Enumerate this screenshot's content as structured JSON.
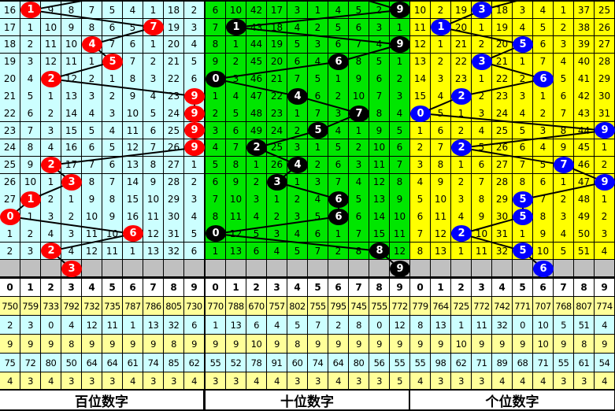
{
  "chart_data": {
    "type": "table",
    "digit_header": [
      "0",
      "1",
      "2",
      "3",
      "4",
      "5",
      "6",
      "7",
      "8",
      "9"
    ],
    "panels": [
      {
        "title": "百位数字",
        "bg_color": "#ccffff",
        "ball_color": "#ff0000",
        "draws": [
          1,
          7,
          4,
          5,
          2,
          9,
          9,
          9,
          9,
          2,
          3,
          1,
          0,
          6,
          2
        ],
        "next_draw": 3,
        "rows": [
          [
            16,
            1,
            9,
            8,
            7,
            5,
            4,
            1,
            18,
            2
          ],
          [
            17,
            1,
            10,
            9,
            8,
            6,
            5,
            7,
            19,
            3
          ],
          [
            18,
            2,
            11,
            10,
            4,
            7,
            6,
            1,
            20,
            4
          ],
          [
            19,
            3,
            12,
            11,
            1,
            5,
            7,
            2,
            21,
            5
          ],
          [
            20,
            4,
            2,
            12,
            2,
            1,
            8,
            3,
            22,
            6
          ],
          [
            21,
            5,
            1,
            13,
            3,
            2,
            9,
            4,
            23,
            9
          ],
          [
            22,
            6,
            2,
            14,
            4,
            3,
            10,
            5,
            24,
            9
          ],
          [
            23,
            7,
            3,
            15,
            5,
            4,
            11,
            6,
            25,
            9
          ],
          [
            24,
            8,
            4,
            16,
            6,
            5,
            12,
            7,
            26,
            9
          ],
          [
            25,
            9,
            2,
            17,
            7,
            6,
            13,
            8,
            27,
            1
          ],
          [
            26,
            10,
            1,
            3,
            8,
            7,
            14,
            9,
            28,
            2
          ],
          [
            27,
            1,
            2,
            1,
            9,
            8,
            15,
            10,
            29,
            3
          ],
          [
            0,
            1,
            3,
            2,
            10,
            9,
            16,
            11,
            30,
            4
          ],
          [
            1,
            2,
            4,
            3,
            11,
            10,
            6,
            12,
            31,
            5
          ],
          [
            2,
            3,
            2,
            4,
            12,
            11,
            1,
            13,
            32,
            6
          ]
        ],
        "stats": [
          [
            750,
            759,
            733,
            792,
            732,
            735,
            787,
            786,
            805,
            730
          ],
          [
            2,
            3,
            0,
            4,
            12,
            11,
            1,
            13,
            32,
            6
          ],
          [
            9,
            9,
            9,
            8,
            9,
            9,
            9,
            9,
            8,
            9
          ],
          [
            75,
            72,
            80,
            50,
            64,
            64,
            61,
            74,
            85,
            62
          ],
          [
            4,
            3,
            4,
            3,
            3,
            3,
            4,
            3,
            3,
            4
          ]
        ]
      },
      {
        "title": "十位数字",
        "bg_color": "#00e600",
        "ball_color": "#000000",
        "draws": [
          9,
          1,
          9,
          6,
          0,
          4,
          7,
          5,
          2,
          4,
          3,
          6,
          6,
          0,
          8
        ],
        "next_draw": 9,
        "rows": [
          [
            6,
            10,
            42,
            17,
            3,
            1,
            4,
            5,
            2,
            9
          ],
          [
            7,
            1,
            43,
            18,
            4,
            2,
            5,
            6,
            3,
            1
          ],
          [
            8,
            1,
            44,
            19,
            5,
            3,
            6,
            7,
            4,
            9
          ],
          [
            9,
            2,
            45,
            20,
            6,
            4,
            6,
            8,
            5,
            1
          ],
          [
            0,
            3,
            46,
            21,
            7,
            5,
            1,
            9,
            6,
            2
          ],
          [
            1,
            4,
            47,
            22,
            4,
            6,
            2,
            10,
            7,
            3
          ],
          [
            2,
            5,
            48,
            23,
            1,
            7,
            3,
            7,
            8,
            4
          ],
          [
            3,
            6,
            49,
            24,
            2,
            5,
            4,
            1,
            9,
            5
          ],
          [
            4,
            7,
            2,
            25,
            3,
            1,
            5,
            2,
            10,
            6
          ],
          [
            5,
            8,
            1,
            26,
            4,
            2,
            6,
            3,
            11,
            7
          ],
          [
            6,
            9,
            2,
            3,
            1,
            3,
            7,
            4,
            12,
            8
          ],
          [
            7,
            10,
            3,
            1,
            2,
            4,
            6,
            5,
            13,
            9
          ],
          [
            8,
            11,
            4,
            2,
            3,
            5,
            6,
            6,
            14,
            10
          ],
          [
            0,
            12,
            5,
            3,
            4,
            6,
            1,
            7,
            15,
            11
          ],
          [
            1,
            13,
            6,
            4,
            5,
            7,
            2,
            8,
            8,
            12
          ]
        ],
        "stats": [
          [
            770,
            788,
            670,
            757,
            802,
            755,
            795,
            745,
            755,
            772
          ],
          [
            1,
            13,
            6,
            4,
            5,
            7,
            2,
            8,
            0,
            12
          ],
          [
            9,
            9,
            10,
            9,
            8,
            9,
            9,
            9,
            9,
            9
          ],
          [
            55,
            52,
            78,
            91,
            60,
            74,
            64,
            80,
            56,
            55
          ],
          [
            3,
            3,
            4,
            4,
            3,
            3,
            4,
            3,
            3,
            5
          ]
        ]
      },
      {
        "title": "个位数字",
        "bg_color": "#ffff00",
        "ball_color": "#0000ff",
        "draws": [
          3,
          1,
          5,
          3,
          6,
          2,
          0,
          9,
          2,
          7,
          9,
          5,
          5,
          2,
          5
        ],
        "next_draw": 6,
        "rows": [
          [
            10,
            2,
            19,
            3,
            18,
            3,
            4,
            1,
            37,
            25
          ],
          [
            11,
            1,
            20,
            1,
            19,
            4,
            5,
            2,
            38,
            26
          ],
          [
            12,
            1,
            21,
            2,
            20,
            5,
            6,
            3,
            39,
            27
          ],
          [
            13,
            2,
            22,
            3,
            21,
            1,
            7,
            4,
            40,
            28
          ],
          [
            14,
            3,
            23,
            1,
            22,
            2,
            6,
            5,
            41,
            29
          ],
          [
            15,
            4,
            2,
            2,
            23,
            3,
            1,
            6,
            42,
            30
          ],
          [
            0,
            5,
            1,
            3,
            24,
            4,
            2,
            7,
            43,
            31
          ],
          [
            1,
            6,
            2,
            4,
            25,
            5,
            3,
            8,
            44,
            9
          ],
          [
            2,
            7,
            2,
            5,
            26,
            6,
            4,
            9,
            45,
            1
          ],
          [
            3,
            8,
            1,
            6,
            27,
            7,
            5,
            7,
            46,
            2
          ],
          [
            4,
            9,
            2,
            7,
            28,
            8,
            6,
            1,
            47,
            9
          ],
          [
            5,
            10,
            3,
            8,
            29,
            5,
            7,
            2,
            48,
            1
          ],
          [
            6,
            11,
            4,
            9,
            30,
            5,
            8,
            3,
            49,
            2
          ],
          [
            7,
            12,
            2,
            10,
            31,
            1,
            9,
            4,
            50,
            3
          ],
          [
            8,
            13,
            1,
            11,
            32,
            5,
            10,
            5,
            51,
            4
          ]
        ],
        "stats": [
          [
            779,
            764,
            725,
            772,
            742,
            771,
            707,
            768,
            807,
            774
          ],
          [
            8,
            13,
            1,
            11,
            32,
            0,
            10,
            5,
            51,
            4
          ],
          [
            9,
            9,
            10,
            9,
            9,
            9,
            10,
            9,
            8,
            9
          ],
          [
            55,
            98,
            62,
            71,
            89,
            68,
            71,
            55,
            61,
            54
          ],
          [
            4,
            3,
            3,
            3,
            4,
            4,
            4,
            3,
            3,
            4
          ]
        ]
      }
    ],
    "stat_row_colors": [
      "#ffff99",
      "#ccffff",
      "#ffff99",
      "#ccffff",
      "#ffff99"
    ],
    "gray_row_color": "#c0c0c0"
  }
}
